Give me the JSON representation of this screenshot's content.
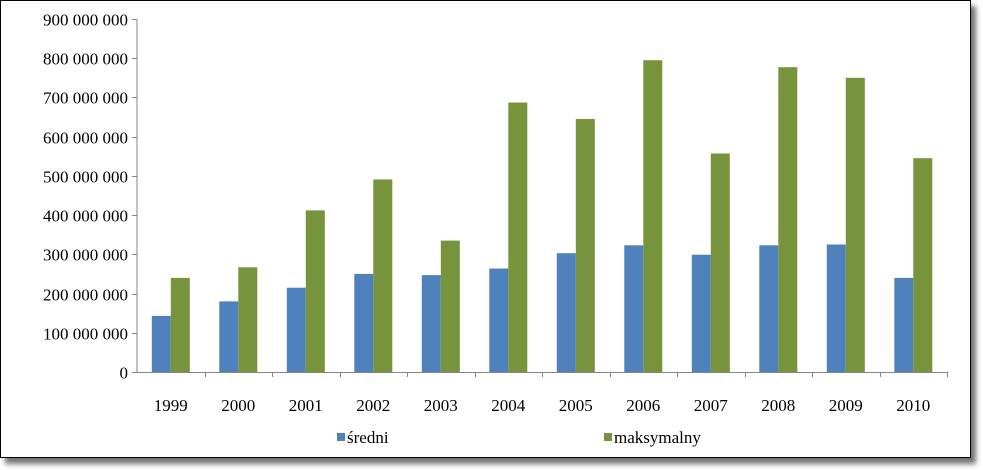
{
  "chart_data": {
    "type": "bar",
    "categories": [
      "1999",
      "2000",
      "2001",
      "2002",
      "2003",
      "2004",
      "2005",
      "2006",
      "2007",
      "2008",
      "2009",
      "2010"
    ],
    "series": [
      {
        "name": "średni",
        "color": "#4f81bd",
        "values": [
          143000000,
          180000000,
          215000000,
          250000000,
          247000000,
          264000000,
          303000000,
          323000000,
          299000000,
          323000000,
          325000000,
          240000000
        ]
      },
      {
        "name": "maksymalny",
        "color": "#77933c",
        "values": [
          240000000,
          267000000,
          412000000,
          491000000,
          335000000,
          687000000,
          645000000,
          795000000,
          557000000,
          777000000,
          750000000,
          545000000
        ]
      }
    ],
    "ylim": [
      0,
      900000000
    ],
    "yticks": [
      0,
      100000000,
      200000000,
      300000000,
      400000000,
      500000000,
      600000000,
      700000000,
      800000000,
      900000000
    ],
    "ytick_labels": [
      "0",
      "100 000 000",
      "200 000 000",
      "300 000 000",
      "400 000 000",
      "500 000 000",
      "600 000 000",
      "700 000 000",
      "800 000 000",
      "900 000 000"
    ],
    "grid": false,
    "legend": "bottom"
  }
}
